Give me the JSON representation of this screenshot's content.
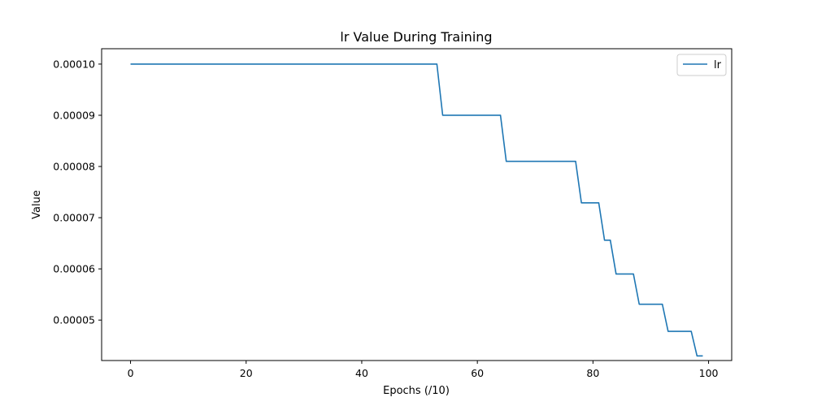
{
  "chart_data": {
    "type": "line",
    "title": "lr Value During Training",
    "xlabel": "Epochs (/10)",
    "ylabel": "Value",
    "xlim": [
      -5,
      104
    ],
    "ylim": [
      4.21e-05,
      0.000103
    ],
    "xticks": [
      0,
      20,
      40,
      60,
      80,
      100
    ],
    "xtick_labels": [
      "0",
      "20",
      "40",
      "60",
      "80",
      "100"
    ],
    "yticks": [
      5e-05,
      6e-05,
      7e-05,
      8e-05,
      9e-05,
      0.0001
    ],
    "ytick_labels": [
      "0.00005",
      "0.00006",
      "0.00007",
      "0.00008",
      "0.00009",
      "0.00010"
    ],
    "grid": false,
    "legend_position": "top-right",
    "series": [
      {
        "name": "lr",
        "color": "#1f77b4",
        "x": [
          0,
          53,
          54,
          64,
          65,
          77,
          78,
          81,
          82,
          83,
          84,
          87,
          88,
          92,
          93,
          97,
          98,
          99
        ],
        "y": [
          0.0001,
          0.0001,
          9e-05,
          9e-05,
          8.1e-05,
          8.1e-05,
          7.29e-05,
          7.29e-05,
          6.56e-05,
          6.56e-05,
          5.9e-05,
          5.9e-05,
          5.31e-05,
          5.31e-05,
          4.78e-05,
          4.78e-05,
          4.3e-05,
          4.3e-05
        ]
      }
    ]
  }
}
